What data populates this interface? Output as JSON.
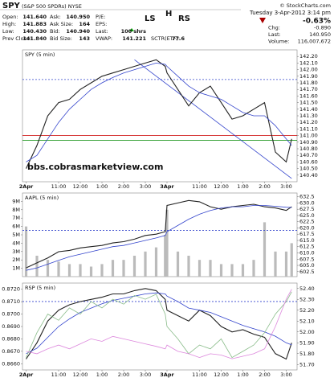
{
  "header": {
    "symbol": "SPY",
    "name": "(S&P 500 SPDRs) NYSE",
    "credit": "© StockCharts.com",
    "date": "Tuesday  3-Apr-2012  3:14 pm",
    "quote": [
      [
        {
          "label": "Open:",
          "value": "141.640"
        },
        {
          "label": "High:",
          "value": "141.883"
        },
        {
          "label": "Low:",
          "value": "140.430"
        },
        {
          "label": "Prev Close:",
          "value": "141.840"
        }
      ],
      [
        {
          "label": "Ask:",
          "value": "140.950"
        },
        {
          "label": "Ask Size:",
          "value": "164"
        },
        {
          "label": "Bid:",
          "value": "140.940"
        },
        {
          "label": "Bid Size:",
          "value": "143"
        }
      ],
      [
        {
          "label": "P/E:"
        },
        {
          "label": "EPS:"
        },
        {
          "label": "Last:",
          "value": "100 shrs"
        },
        {
          "label": "VWAP:",
          "value": "141.221"
        }
      ],
      [
        {
          "label": "SCTR(ETF):",
          "value": "77.6"
        }
      ]
    ],
    "summary": [
      {
        "value": "-0.63%"
      },
      {
        "label": "Chg:",
        "value": "-0.890"
      },
      {
        "label": "Last:",
        "value": "140.950"
      },
      {
        "label": "Volume:",
        "value": "116,007,672"
      }
    ]
  },
  "chart_data": [
    {
      "type": "line",
      "title": "SPY (5 min)",
      "annotations": [
        "LS",
        "H",
        "RS",
        "bbs.cobrasmarketview.com"
      ],
      "x": [
        0,
        6,
        12,
        18,
        24,
        30,
        36,
        42,
        48,
        54,
        60,
        66,
        72,
        77,
        78,
        84,
        90,
        96,
        102,
        108,
        114,
        120,
        126,
        132,
        138,
        144,
        147
      ],
      "series": [
        {
          "color": "#222222",
          "values": [
            140.5,
            140.85,
            141.3,
            141.5,
            141.55,
            141.7,
            141.8,
            141.9,
            141.95,
            142.0,
            142.05,
            142.1,
            142.15,
            142.05,
            141.95,
            141.7,
            141.45,
            141.65,
            141.75,
            141.5,
            141.25,
            141.3,
            141.4,
            141.5,
            140.75,
            140.6,
            140.95
          ]
        },
        {
          "color": "#3344cc",
          "values": [
            140.6,
            140.7,
            140.95,
            141.2,
            141.4,
            141.55,
            141.7,
            141.8,
            141.88,
            141.95,
            142.0,
            142.05,
            142.1,
            142.08,
            142.05,
            141.9,
            141.75,
            141.65,
            141.6,
            141.55,
            141.45,
            141.35,
            141.3,
            141.3,
            141.15,
            140.95,
            140.85
          ]
        }
      ],
      "hlines": [
        {
          "value": 141.0,
          "color": "#cc0000"
        },
        {
          "value": 140.93,
          "color": "#008800"
        },
        {
          "value": 141.85,
          "color": "#3344cc",
          "dashed": true
        }
      ],
      "trendlines": [
        {
          "x": [
            60,
            147
          ],
          "y": [
            142.15,
            140.35
          ],
          "color": "#3344cc"
        }
      ],
      "xlim": [
        -2,
        150
      ],
      "xticks": [
        {
          "value": 0,
          "label": "2Apr"
        },
        {
          "value": 18,
          "label": "11:00"
        },
        {
          "value": 30,
          "label": "12:00"
        },
        {
          "value": 42,
          "label": "1:00"
        },
        {
          "value": 54,
          "label": "2:00"
        },
        {
          "value": 66,
          "label": "3:00"
        },
        {
          "value": 78,
          "label": "3Apr"
        },
        {
          "value": 96,
          "label": "11:00"
        },
        {
          "value": 108,
          "label": "12:00"
        },
        {
          "value": 120,
          "label": "1:00"
        },
        {
          "value": 132,
          "label": "2:00"
        },
        {
          "value": 144,
          "label": "3:00"
        }
      ],
      "ylim": [
        140.3,
        142.3
      ],
      "yticks": [
        {
          "value": 140.4,
          "label": "140.40"
        },
        {
          "value": 140.5,
          "label": "140.50"
        },
        {
          "value": 140.6,
          "label": "140.60"
        },
        {
          "value": 140.7,
          "label": "140.70"
        },
        {
          "value": 140.8,
          "label": "140.80"
        },
        {
          "value": 140.9,
          "label": "140.90"
        },
        {
          "value": 141,
          "label": "141.00"
        },
        {
          "value": 141.1,
          "label": "141.10"
        },
        {
          "value": 141.2,
          "label": "141.20"
        },
        {
          "value": 141.3,
          "label": "141.30"
        },
        {
          "value": 141.4,
          "label": "141.40"
        },
        {
          "value": 141.5,
          "label": "141.50"
        },
        {
          "value": 141.6,
          "label": "141.60"
        },
        {
          "value": 141.7,
          "label": "141.70"
        },
        {
          "value": 141.8,
          "label": "141.80"
        },
        {
          "value": 141.9,
          "label": "141.90"
        },
        {
          "value": 142,
          "label": "142.00"
        },
        {
          "value": 142.1,
          "label": "142.10"
        },
        {
          "value": 142.2,
          "label": "142.20"
        }
      ]
    },
    {
      "type": "line",
      "title": "AAPL (5 min)",
      "x": [
        0,
        6,
        12,
        18,
        24,
        30,
        36,
        42,
        48,
        54,
        60,
        66,
        72,
        77,
        78,
        84,
        90,
        96,
        102,
        108,
        114,
        120,
        126,
        132,
        138,
        144,
        147
      ],
      "series": [
        {
          "color": "#222222",
          "values": [
            604,
            606,
            608,
            610.5,
            611,
            612,
            612.5,
            613,
            614,
            614.5,
            615.5,
            617,
            617.5,
            618.5,
            629,
            630,
            631,
            630.5,
            628.5,
            627.5,
            628.5,
            629,
            629.5,
            628.5,
            628,
            627,
            628.5
          ]
        },
        {
          "color": "#3344cc",
          "values": [
            603,
            604,
            605.5,
            607,
            608.5,
            609.5,
            610.5,
            611.5,
            612.5,
            613,
            614,
            615,
            616,
            617,
            618.5,
            621,
            623.5,
            625.5,
            627,
            628,
            628.5,
            628.5,
            629,
            629,
            628.7,
            628.3,
            628.2
          ]
        }
      ],
      "volume": {
        "color": "#bbbbbb",
        "values": [
          6,
          2.5,
          2,
          1.8,
          1.5,
          1.5,
          1.2,
          1.5,
          2,
          2,
          2.5,
          3,
          3.5,
          5,
          8,
          3,
          2.5,
          2,
          2,
          1.5,
          1.5,
          1.5,
          2,
          6.5,
          3,
          3,
          4
        ]
      },
      "vlim": [
        0,
        10
      ],
      "vticks": [
        {
          "value": 1,
          "label": "1M"
        },
        {
          "value": 2,
          "label": "2M"
        },
        {
          "value": 3,
          "label": "3M"
        },
        {
          "value": 4,
          "label": "4M"
        },
        {
          "value": 5,
          "label": "5M"
        },
        {
          "value": 6,
          "label": "6M"
        },
        {
          "value": 7,
          "label": "7M"
        },
        {
          "value": 8,
          "label": "8M"
        },
        {
          "value": 9,
          "label": "9M"
        }
      ],
      "hlines": [
        {
          "value": 619,
          "color": "#3344cc",
          "dashed": true
        }
      ],
      "xlim": [
        -2,
        150
      ],
      "ylim": [
        600.5,
        634
      ],
      "yticks": [
        602.5,
        {
          "value": 605,
          "label": "605.0"
        },
        607.5,
        {
          "value": 610,
          "label": "610.0"
        },
        612.5,
        {
          "value": 615,
          "label": "615.0"
        },
        617.5,
        {
          "value": 620,
          "label": "620.0"
        },
        622.5,
        {
          "value": 625,
          "label": "625.0"
        },
        627.5,
        {
          "value": 630,
          "label": "630.0"
        },
        632.5
      ]
    },
    {
      "type": "line",
      "title": "RSP (5 min)",
      "x": [
        0,
        6,
        12,
        18,
        24,
        30,
        36,
        42,
        48,
        54,
        60,
        66,
        72,
        77,
        78,
        84,
        90,
        96,
        102,
        108,
        114,
        120,
        126,
        132,
        138,
        144,
        147
      ],
      "series": [
        {
          "color": "#222222",
          "values": [
            51.75,
            51.9,
            52.1,
            52.2,
            52.25,
            52.28,
            52.3,
            52.32,
            52.35,
            52.35,
            52.38,
            52.4,
            52.38,
            52.3,
            52.2,
            52.15,
            52.1,
            52.2,
            52.15,
            52.05,
            52.0,
            52.02,
            51.98,
            51.95,
            51.8,
            51.75,
            51.9
          ]
        },
        {
          "color": "#3344cc",
          "values": [
            51.8,
            51.85,
            51.95,
            52.05,
            52.12,
            52.18,
            52.22,
            52.26,
            52.29,
            52.31,
            52.33,
            52.35,
            52.36,
            52.35,
            52.33,
            52.28,
            52.22,
            52.2,
            52.18,
            52.14,
            52.1,
            52.06,
            52.03,
            52.0,
            51.96,
            51.9,
            51.88
          ]
        },
        {
          "color": "#88bb88",
          "axis": "y2",
          "values": [
            0.8665,
            0.8685,
            0.87,
            0.8695,
            0.8705,
            0.87,
            0.871,
            0.8705,
            0.8712,
            0.8708,
            0.8715,
            0.8712,
            0.8716,
            0.87,
            0.869,
            0.868,
            0.8668,
            0.8675,
            0.8672,
            0.868,
            0.8665,
            0.867,
            0.8675,
            0.8685,
            0.87,
            0.871,
            0.8718
          ]
        },
        {
          "color": "#dd88dd",
          "axis": "y2",
          "values": [
            0.867,
            0.8668,
            0.8672,
            0.8675,
            0.8672,
            0.8676,
            0.868,
            0.8678,
            0.8682,
            0.868,
            0.8678,
            0.8676,
            0.8674,
            0.8672,
            0.8675,
            0.867,
            0.8668,
            0.8665,
            0.8668,
            0.8667,
            0.8664,
            0.8666,
            0.8668,
            0.8672,
            0.869,
            0.8712,
            0.872
          ]
        }
      ],
      "hlines": [
        {
          "value": 52.28,
          "color": "#3344cc",
          "dashed": true
        }
      ],
      "xlim": [
        -2,
        150
      ],
      "xticks": [
        {
          "value": 0,
          "label": "2Apr"
        },
        {
          "value": 18,
          "label": "11:00"
        },
        {
          "value": 30,
          "label": "12:00"
        },
        {
          "value": 42,
          "label": "1:00"
        },
        {
          "value": 54,
          "label": "2:00"
        },
        {
          "value": 66,
          "label": "3:00"
        },
        {
          "value": 78,
          "label": "3Apr"
        },
        {
          "value": 96,
          "label": "11:00"
        },
        {
          "value": 108,
          "label": "12:00"
        },
        {
          "value": 120,
          "label": "1:00"
        },
        {
          "value": 132,
          "label": "2:00"
        },
        {
          "value": 144,
          "label": "3:00"
        }
      ],
      "ylim": [
        51.65,
        52.45
      ],
      "yticks": [
        {
          "value": 51.7,
          "label": "51.70"
        },
        {
          "value": 51.8,
          "label": "51.80"
        },
        {
          "value": 51.9,
          "label": "51.90"
        },
        {
          "value": 52,
          "label": "52.00"
        },
        {
          "value": 52.1,
          "label": "52.10"
        },
        {
          "value": 52.2,
          "label": "52.20"
        },
        {
          "value": 52.3,
          "label": "52.30"
        },
        {
          "value": 52.4,
          "label": "52.40"
        }
      ],
      "y2lim": [
        0.8655,
        0.8725
      ],
      "y2ticks": [
        {
          "value": 0.866,
          "label": "0.8660"
        },
        {
          "value": 0.867,
          "label": "0.8670"
        },
        {
          "value": 0.868,
          "label": "0.8680"
        },
        {
          "value": 0.869,
          "label": "0.8690"
        },
        {
          "value": 0.87,
          "label": "0.8700"
        },
        {
          "value": 0.871,
          "label": "0.8710"
        },
        {
          "value": 0.872,
          "label": "0.8720"
        }
      ]
    }
  ]
}
